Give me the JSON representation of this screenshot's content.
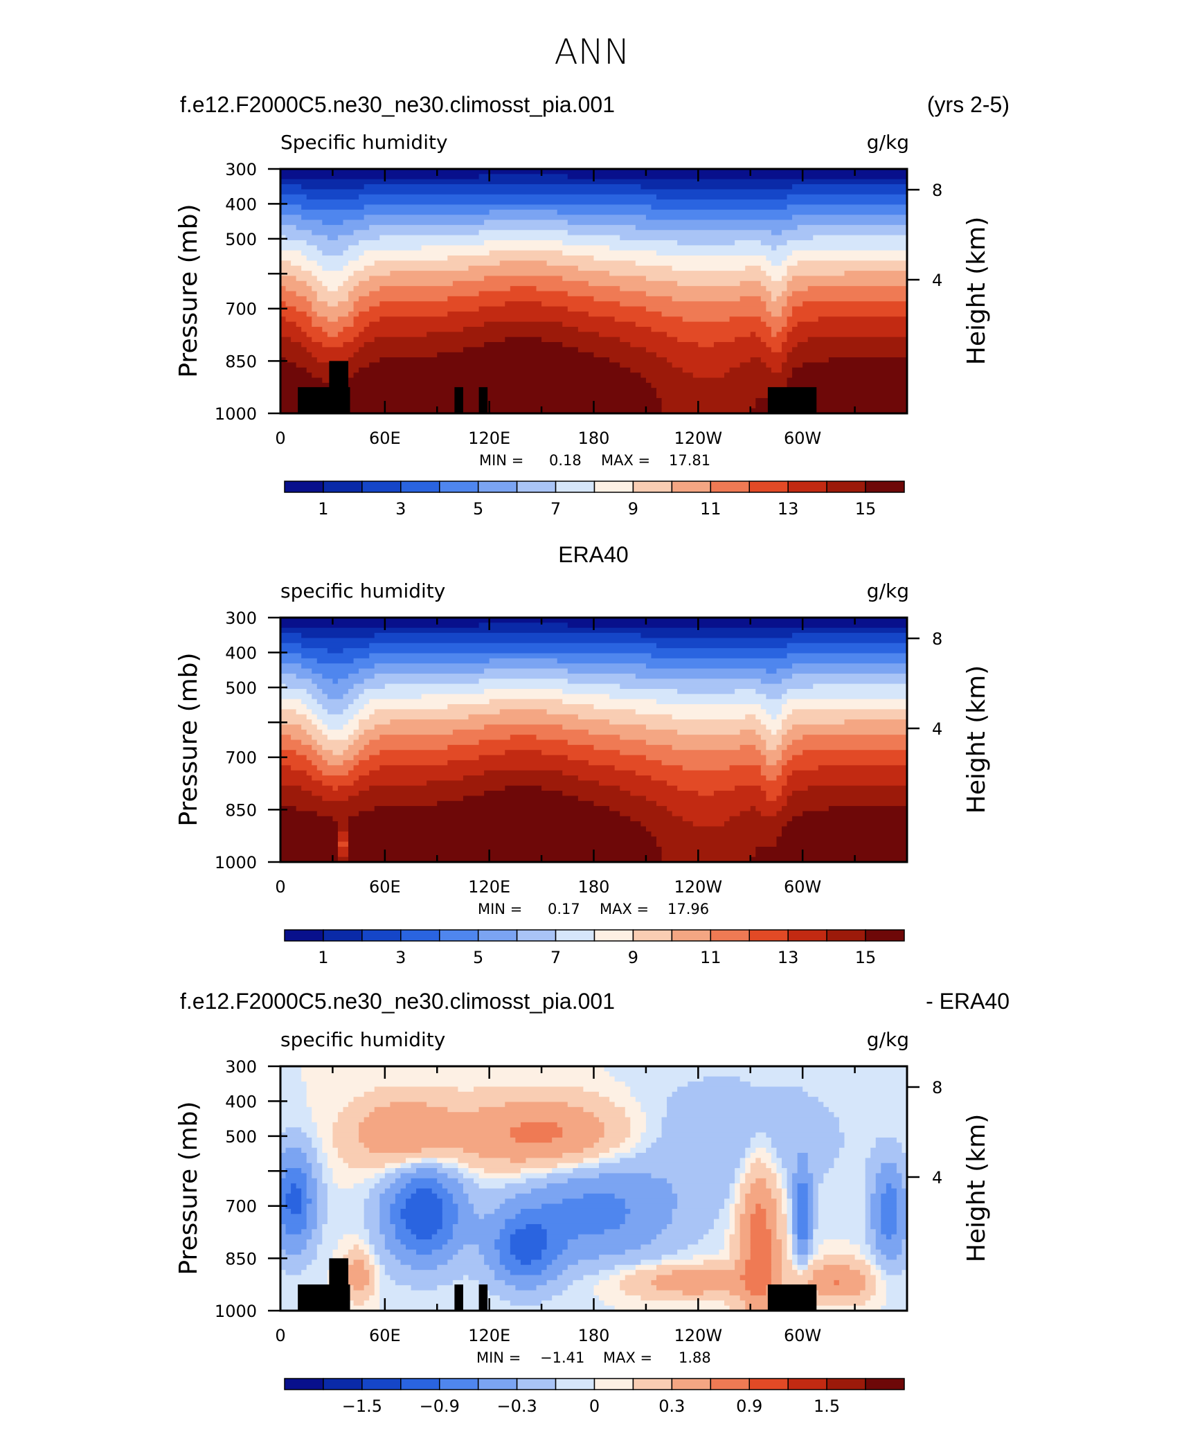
{
  "figure": {
    "title": "ANN",
    "x_ticks": [
      "0",
      "60E",
      "120E",
      "180",
      "120W",
      "60W"
    ],
    "pressure_ticks": [
      "300",
      "400",
      "500",
      "",
      "700",
      "850",
      "1000"
    ],
    "height_ticks": [
      "8",
      "4"
    ],
    "y_label_left": "Pressure (mb)",
    "y_label_right": "Height (km)",
    "colors": {
      "abs_palette": [
        "#08108c",
        "#0a2aa8",
        "#1546c8",
        "#2a64e0",
        "#4f86ee",
        "#7ba4f2",
        "#a9c4f6",
        "#d6e6fa",
        "#fdf0e4",
        "#f9cdb3",
        "#f4a683",
        "#ef7a54",
        "#e24a26",
        "#c22a12",
        "#9c1a0a",
        "#6e0808"
      ],
      "diff_palette": [
        "#08108c",
        "#0a2aa8",
        "#1546c8",
        "#2a64e0",
        "#4f86ee",
        "#7ba4f2",
        "#a9c4f6",
        "#d6e6fa",
        "#fdf0e4",
        "#f9cdb3",
        "#f4a683",
        "#ef7a54",
        "#e24a26",
        "#c22a12",
        "#9c1a0a",
        "#6e0808"
      ],
      "topography": "#000000"
    }
  },
  "panels": [
    {
      "id": "model",
      "left_title": "f.e12.F2000C5.ne30_ne30.climosst_pia.001",
      "right_title": "(yrs 2-5)",
      "variable": "Specific humidity",
      "units": "g/kg",
      "min_label": "MIN =",
      "min_value": "0.18",
      "max_label": "MAX =",
      "max_value": "17.81",
      "colorbar_labels": [
        "1",
        "3",
        "5",
        "7",
        "9",
        "11",
        "13",
        "15"
      ]
    },
    {
      "id": "obs",
      "left_title": "",
      "center_title": "ERA40",
      "right_title": "",
      "variable": "specific humidity",
      "units": "g/kg",
      "min_label": "MIN =",
      "min_value": "0.17",
      "max_label": "MAX =",
      "max_value": "17.96",
      "colorbar_labels": [
        "1",
        "3",
        "5",
        "7",
        "9",
        "11",
        "13",
        "15"
      ]
    },
    {
      "id": "diff",
      "left_title": "f.e12.F2000C5.ne30_ne30.climosst_pia.001",
      "right_title": "- ERA40",
      "variable": "specific humidity",
      "units": "g/kg",
      "min_label": "MIN =",
      "min_value": "−1.41",
      "max_label": "MAX =",
      "max_value": "1.88",
      "colorbar_labels": [
        "−1.5",
        "−0.9",
        "−0.3",
        "0",
        "0.3",
        "0.9",
        "1.5"
      ]
    }
  ],
  "chart_data": [
    {
      "type": "heatmap",
      "title": "f.e12.F2000C5.ne30_ne30.climosst_pia.001 (yrs 2-5)",
      "variable": "Specific humidity",
      "units": "g/kg",
      "x": [
        "0",
        "60E",
        "120E",
        "180",
        "120W",
        "60W"
      ],
      "y_pressure_mb": [
        300,
        400,
        500,
        700,
        850,
        1000
      ],
      "value_range": [
        0.18,
        17.81
      ],
      "contour_levels": [
        1,
        2,
        3,
        4,
        5,
        6,
        7,
        8,
        9,
        10,
        11,
        12,
        13,
        14,
        15
      ],
      "topography_longitudes_deg": [
        [
          10,
          40
        ],
        [
          100,
          105
        ],
        [
          114,
          119
        ],
        [
          280,
          308
        ]
      ]
    },
    {
      "type": "heatmap",
      "title": "ERA40",
      "variable": "specific humidity",
      "units": "g/kg",
      "x": [
        "0",
        "60E",
        "120E",
        "180",
        "120W",
        "60W"
      ],
      "y_pressure_mb": [
        300,
        400,
        500,
        700,
        850,
        1000
      ],
      "value_range": [
        0.17,
        17.96
      ],
      "contour_levels": [
        1,
        2,
        3,
        4,
        5,
        6,
        7,
        8,
        9,
        10,
        11,
        12,
        13,
        14,
        15
      ]
    },
    {
      "type": "heatmap",
      "title": "f.e12.F2000C5.ne30_ne30.climosst_pia.001 - ERA40",
      "variable": "specific humidity",
      "units": "g/kg",
      "x": [
        "0",
        "60E",
        "120E",
        "180",
        "120W",
        "60W"
      ],
      "y_pressure_mb": [
        300,
        400,
        500,
        700,
        850,
        1000
      ],
      "value_range": [
        -1.41,
        1.88
      ],
      "contour_levels": [
        -1.8,
        -1.5,
        -1.2,
        -0.9,
        -0.6,
        -0.3,
        -0.1,
        0,
        0.1,
        0.3,
        0.6,
        0.9,
        1.2,
        1.5,
        1.8
      ]
    }
  ]
}
